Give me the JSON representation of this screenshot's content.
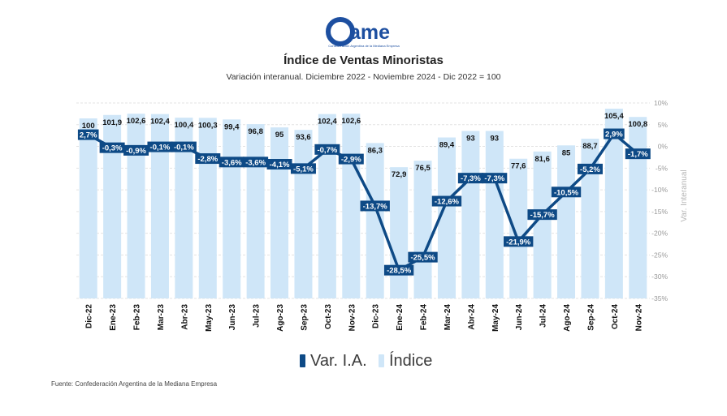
{
  "logo": {
    "text": "ame",
    "caption": "Confederación Argentina de la Mediana Empresa"
  },
  "title": "Índice de Ventas Minoristas",
  "subtitle": "Variación interanual. Diciembre 2022 - Noviembre 2024 - Dic 2022 = 100",
  "source": "Fuente: Confederación Argentina de la Mediana Empresa",
  "colors": {
    "bar": "#cfe6f8",
    "line": "#0e4a86",
    "grid": "#e3e3e3",
    "axis_text": "#999999"
  },
  "chart_data": {
    "type": "bar+line",
    "categories": [
      "Dic-22",
      "Ene-23",
      "Feb-23",
      "Mar-23",
      "Abr-23",
      "May-23",
      "Jun-23",
      "Jul-23",
      "Ago-23",
      "Sep-23",
      "Oct-23",
      "Nov-23",
      "Dic-23",
      "Ene-24",
      "Feb-24",
      "Mar-24",
      "Abr-24",
      "May-24",
      "Jun-24",
      "Jul-24",
      "Ago-24",
      "Sep-24",
      "Oct-24",
      "Nov-24"
    ],
    "series": [
      {
        "name": "Índice",
        "type": "bar",
        "values": [
          100,
          101.9,
          102.6,
          102.4,
          100.4,
          100.3,
          99.4,
          96.8,
          95,
          93.6,
          102.4,
          102.6,
          86.3,
          72.9,
          76.5,
          89.4,
          93,
          93,
          77.6,
          81.6,
          85,
          88.7,
          105.4,
          100.8
        ],
        "labels": [
          "100",
          "101,9",
          "102,6",
          "102,4",
          "100,4",
          "100,3",
          "99,4",
          "96,8",
          "95",
          "93,6",
          "102,4",
          "102,6",
          "86,3",
          "72,9",
          "76,5",
          "89,4",
          "93",
          "93",
          "77,6",
          "81,6",
          "85",
          "88,7",
          "105,4",
          "100,8"
        ]
      },
      {
        "name": "Var. I.A.",
        "type": "line",
        "axis": "right",
        "values": [
          2.7,
          -0.3,
          -0.9,
          -0.1,
          -0.1,
          -2.8,
          -3.6,
          -3.6,
          -4.1,
          -5.1,
          -0.7,
          -2.9,
          -13.7,
          -28.5,
          -25.5,
          -12.6,
          -7.3,
          -7.3,
          -21.9,
          -15.7,
          -10.5,
          -5.2,
          2.9,
          -1.7
        ],
        "labels": [
          "2,7%",
          "-0,3%",
          "-0,9%",
          "-0,1%",
          "-0,1%",
          "-2,8%",
          "-3,6%",
          "-3,6%",
          "-4,1%",
          "-5,1%",
          "-0,7%",
          "-2,9%",
          "-13,7%",
          "-28,5%",
          "-25,5%",
          "-12,6%",
          "-7,3%",
          "-7,3%",
          "-21,9%",
          "-15,7%",
          "-10,5%",
          "-5,2%",
          "2,9%",
          "-1,7%"
        ]
      }
    ],
    "y2_ticks": [
      10,
      5,
      0,
      -5,
      -10,
      -15,
      -20,
      -25,
      -30,
      -35
    ],
    "y2_tick_labels": [
      "10%",
      "5%",
      "0%",
      "-5%",
      "-10%",
      "-15%",
      "-20%",
      "-25%",
      "-30%",
      "-35%"
    ],
    "y2lim": [
      -35,
      10
    ],
    "y2label": "Var. Interanual",
    "legend": {
      "position": "bottom",
      "items": [
        "Var. I.A.",
        "Índice"
      ]
    },
    "grid": true
  }
}
